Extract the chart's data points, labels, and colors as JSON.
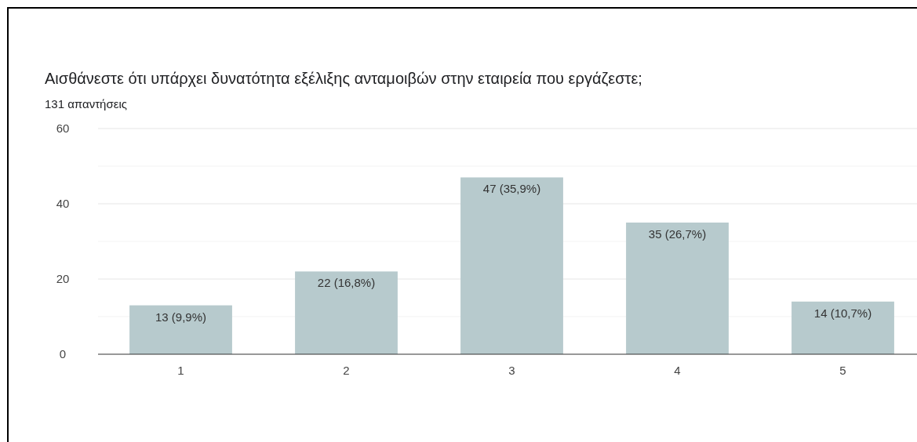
{
  "chart_data": {
    "type": "bar",
    "title": "Αισθάνεστε ότι υπάρχει δυνατότητα εξέλιξης ανταμοιβών στην εταιρεία που εργάζεστε;",
    "subtitle": "131 απαντήσεις",
    "categories": [
      "1",
      "2",
      "3",
      "4",
      "5"
    ],
    "values": [
      13,
      22,
      47,
      35,
      14
    ],
    "value_labels": [
      "13 (9,9%)",
      "22 (16,8%)",
      "47 (35,9%)",
      "35 (26,7%)",
      "14 (10,7%)"
    ],
    "color": "#b7cacd",
    "ylim": [
      0,
      60
    ],
    "yticks": [
      0,
      {
        "value": 10,
        "label": null
      },
      20,
      {
        "value": 30,
        "label": null
      },
      40,
      {
        "value": 50,
        "label": null
      },
      60
    ],
    "grid": "y"
  }
}
